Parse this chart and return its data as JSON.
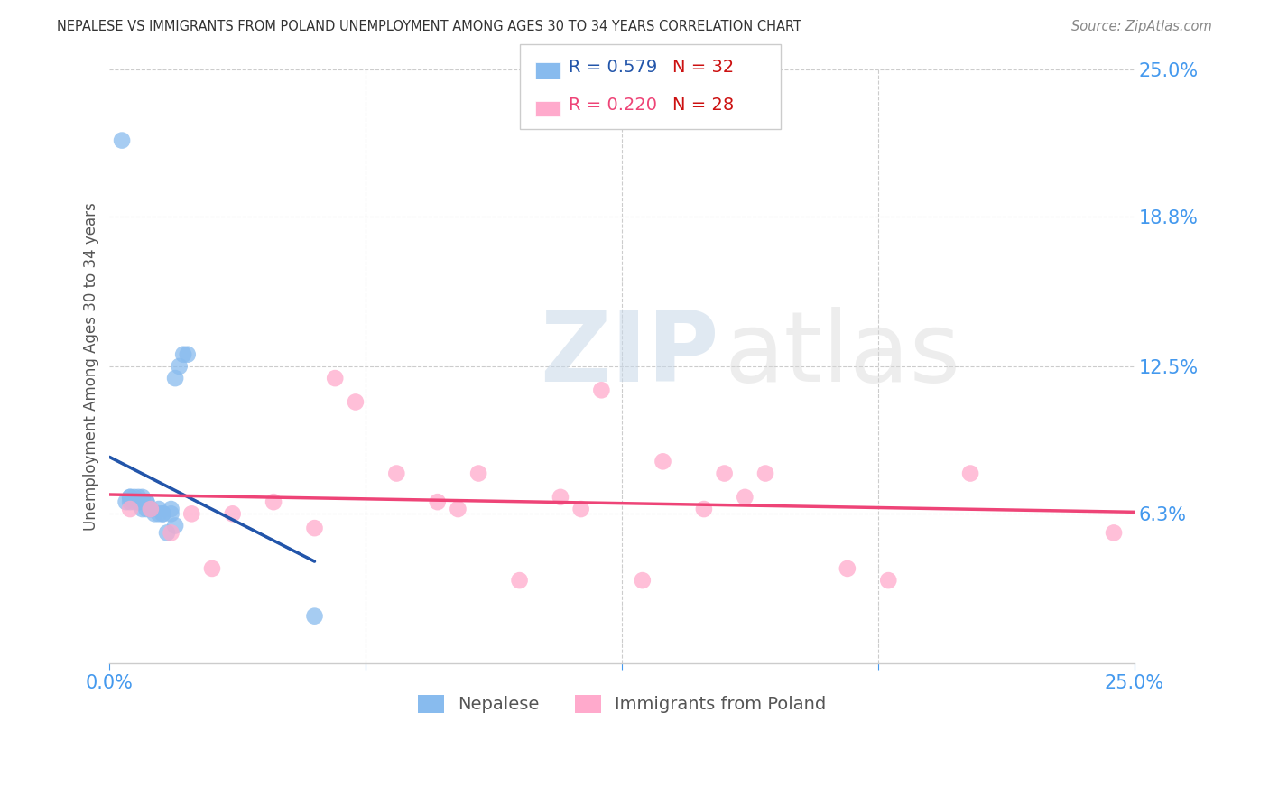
{
  "title": "NEPALESE VS IMMIGRANTS FROM POLAND UNEMPLOYMENT AMONG AGES 30 TO 34 YEARS CORRELATION CHART",
  "source": "Source: ZipAtlas.com",
  "ylabel": "Unemployment Among Ages 30 to 34 years",
  "xlim": [
    0.0,
    0.25
  ],
  "ylim": [
    0.0,
    0.25
  ],
  "ytick_right_labels": [
    "25.0%",
    "18.8%",
    "12.5%",
    "6.3%",
    ""
  ],
  "ytick_right_values": [
    0.25,
    0.188,
    0.125,
    0.063,
    0.0
  ],
  "nepalese_color": "#88BBEE",
  "poland_color": "#FFAACC",
  "nepalese_line_color": "#2255AA",
  "poland_line_color": "#EE4477",
  "legend_r1": "R = 0.579",
  "legend_n1": "N = 32",
  "legend_r2": "R = 0.220",
  "legend_n2": "N = 28",
  "legend_label1": "Nepalese",
  "legend_label2": "Immigrants from Poland",
  "watermark_zip": "ZIP",
  "watermark_atlas": "atlas",
  "nepalese_x": [
    0.004,
    0.005,
    0.005,
    0.005,
    0.006,
    0.006,
    0.007,
    0.007,
    0.007,
    0.008,
    0.008,
    0.008,
    0.009,
    0.009,
    0.009,
    0.01,
    0.01,
    0.011,
    0.012,
    0.012,
    0.013,
    0.013,
    0.014,
    0.015,
    0.015,
    0.016,
    0.016,
    0.017,
    0.018,
    0.019,
    0.05,
    0.003
  ],
  "nepalese_y": [
    0.068,
    0.07,
    0.07,
    0.068,
    0.068,
    0.07,
    0.068,
    0.07,
    0.068,
    0.065,
    0.07,
    0.068,
    0.068,
    0.065,
    0.068,
    0.065,
    0.065,
    0.063,
    0.065,
    0.063,
    0.063,
    0.063,
    0.055,
    0.065,
    0.063,
    0.058,
    0.12,
    0.125,
    0.13,
    0.13,
    0.02,
    0.22
  ],
  "poland_x": [
    0.005,
    0.01,
    0.015,
    0.02,
    0.025,
    0.03,
    0.04,
    0.05,
    0.055,
    0.06,
    0.07,
    0.08,
    0.085,
    0.09,
    0.1,
    0.11,
    0.115,
    0.12,
    0.13,
    0.135,
    0.145,
    0.15,
    0.155,
    0.16,
    0.18,
    0.19,
    0.21,
    0.245
  ],
  "poland_y": [
    0.065,
    0.065,
    0.055,
    0.063,
    0.04,
    0.063,
    0.068,
    0.057,
    0.12,
    0.11,
    0.08,
    0.068,
    0.065,
    0.08,
    0.035,
    0.07,
    0.065,
    0.115,
    0.035,
    0.085,
    0.065,
    0.08,
    0.07,
    0.08,
    0.04,
    0.035,
    0.08,
    0.055
  ],
  "background_color": "#ffffff",
  "grid_color": "#cccccc",
  "title_color": "#333333",
  "axis_tick_color": "#4499EE",
  "right_label_color": "#4499EE"
}
